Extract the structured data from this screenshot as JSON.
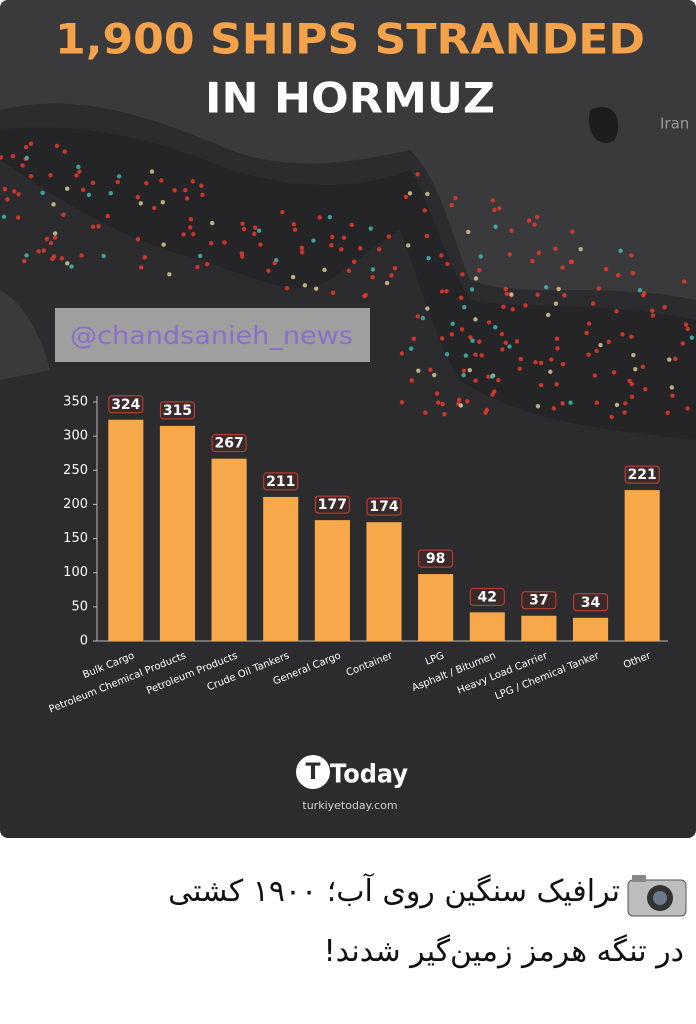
{
  "chart_data": {
    "type": "bar",
    "title": "1,900 SHIPS STRANDED",
    "subtitle": "IN HORMUZ",
    "categories": [
      "Bulk Cargo",
      "Petroleum Chemical Products",
      "Petroleum Products",
      "Crude Oil Tankers",
      "General Cargo",
      "Container",
      "LPG",
      "Asphalt / Bitumen",
      "Heavy Load Carrier",
      "LPG / Chemical Tanker",
      "Other"
    ],
    "values": [
      324,
      315,
      267,
      211,
      177,
      174,
      98,
      42,
      37,
      34,
      221
    ],
    "color": "#f7a84a",
    "ylim": [
      0,
      350
    ],
    "yticks": [
      0,
      50,
      100,
      150,
      200,
      250,
      300,
      350
    ],
    "grid": false
  },
  "map_label": "Iran",
  "watermark": "@chandsanieh_news",
  "logo": {
    "name": "Today",
    "url": "turkiyetoday.com"
  },
  "caption": [
    "ترافیک سنگین روی آب؛ ۱۹۰۰ کشتی",
    "در تنگه هرمز زمین‌گیر شدند!"
  ]
}
